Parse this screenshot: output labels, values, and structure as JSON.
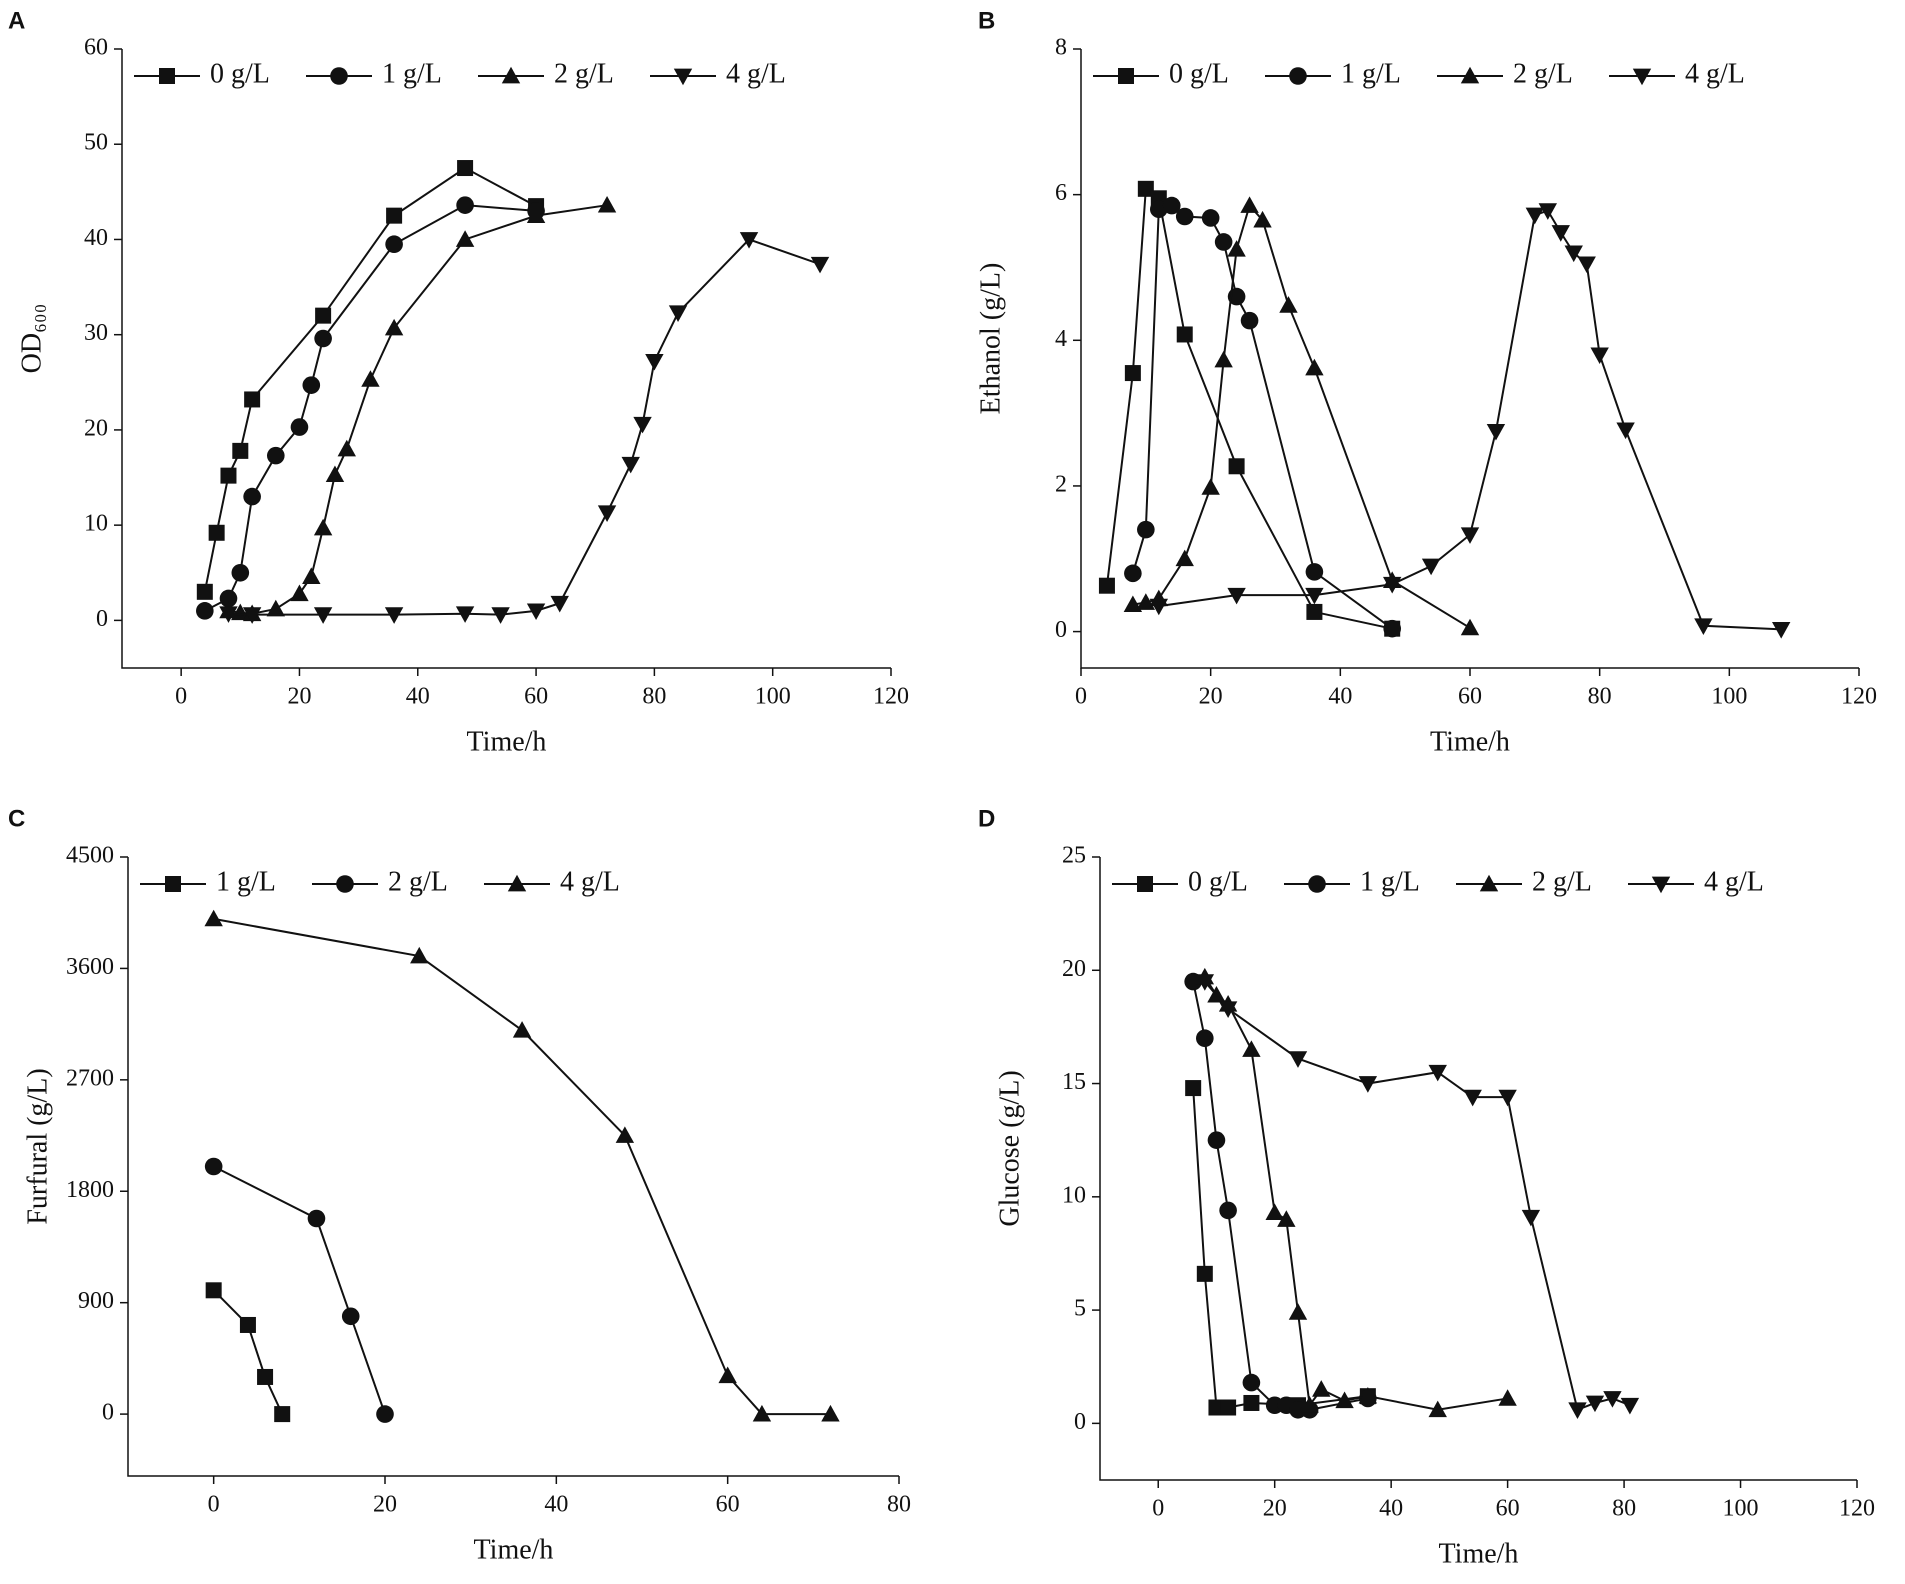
{
  "chart_data": [
    {
      "type": "line",
      "panel": "A",
      "xlabel": "Time/h",
      "ylabel": "OD₆₀₀",
      "xlim": [
        -10,
        120
      ],
      "ylim": [
        -5,
        60
      ],
      "xticks": [
        0,
        20,
        40,
        60,
        80,
        100,
        120
      ],
      "yticks": [
        0,
        10,
        20,
        30,
        40,
        50,
        60
      ],
      "series": [
        {
          "name": "0 g/L",
          "color": "#111111",
          "marker": "square",
          "x": [
            4,
            6,
            8,
            10,
            12,
            24,
            36,
            48,
            60
          ],
          "values": [
            3,
            9.2,
            15.2,
            17.8,
            23.2,
            32,
            42.5,
            47.5,
            43.5
          ]
        },
        {
          "name": "1 g/L",
          "color": "#111111",
          "marker": "circle",
          "x": [
            4,
            8,
            10,
            12,
            16,
            20,
            22,
            24,
            36,
            48,
            60
          ],
          "values": [
            1,
            2.3,
            5,
            13,
            17.3,
            20.3,
            24.7,
            29.6,
            39.5,
            43.6,
            43
          ]
        },
        {
          "name": "2 g/L",
          "color": "#111111",
          "marker": "triangle",
          "x": [
            8,
            10,
            12,
            16,
            20,
            22,
            24,
            26,
            28,
            32,
            36,
            48,
            60,
            72
          ],
          "values": [
            1,
            0.8,
            0.7,
            1.2,
            2.8,
            4.6,
            9.7,
            15.3,
            18,
            25.3,
            30.7,
            40,
            42.5,
            43.6
          ]
        },
        {
          "name": "4 g/L",
          "color": "#111111",
          "marker": "triangle-down",
          "x": [
            8,
            12,
            24,
            36,
            48,
            54,
            60,
            64,
            72,
            76,
            78,
            80,
            84,
            96,
            108
          ],
          "values": [
            0.7,
            0.6,
            0.6,
            0.6,
            0.7,
            0.6,
            1,
            1.8,
            11.3,
            16.4,
            20.6,
            27.2,
            32.3,
            40,
            37.4
          ]
        }
      ]
    },
    {
      "type": "line",
      "panel": "B",
      "xlabel": "Time/h",
      "ylabel": "Ethanol (g/L)",
      "xlim": [
        0,
        120
      ],
      "ylim": [
        -0.5,
        8
      ],
      "xticks": [
        0,
        20,
        40,
        60,
        80,
        100,
        120
      ],
      "yticks": [
        0,
        2,
        4,
        6,
        8
      ],
      "series": [
        {
          "name": "0 g/L",
          "color": "#111111",
          "marker": "square",
          "x": [
            4,
            8,
            10,
            12,
            16,
            24,
            36,
            48
          ],
          "values": [
            0.63,
            3.55,
            6.08,
            5.95,
            4.08,
            2.27,
            0.27,
            0.04
          ]
        },
        {
          "name": "1 g/L",
          "color": "#111111",
          "marker": "circle",
          "x": [
            8,
            10,
            12,
            14,
            16,
            20,
            22,
            24,
            26,
            36,
            48
          ],
          "values": [
            0.8,
            1.4,
            5.8,
            5.85,
            5.7,
            5.68,
            5.35,
            4.6,
            4.27,
            0.82,
            0.04
          ]
        },
        {
          "name": "2 g/L",
          "color": "#111111",
          "marker": "triangle",
          "x": [
            8,
            10,
            12,
            16,
            20,
            22,
            24,
            26,
            28,
            32,
            36,
            48,
            60
          ],
          "values": [
            0.37,
            0.4,
            0.45,
            1,
            1.98,
            3.73,
            5.25,
            5.85,
            5.65,
            4.48,
            3.62,
            0.7,
            0.05
          ]
        },
        {
          "name": "4 g/L",
          "color": "#111111",
          "marker": "triangle-down",
          "x": [
            12,
            24,
            36,
            48,
            54,
            60,
            64,
            70,
            72,
            74,
            76,
            78,
            80,
            84,
            96,
            108
          ],
          "values": [
            0.35,
            0.5,
            0.5,
            0.65,
            0.9,
            1.33,
            2.75,
            5.72,
            5.78,
            5.48,
            5.2,
            5.05,
            3.8,
            2.77,
            0.08,
            0.03
          ]
        }
      ]
    },
    {
      "type": "line",
      "panel": "C",
      "xlabel": "Time/h",
      "ylabel": "Furfural (g/L)",
      "xlim": [
        -10,
        80
      ],
      "ylim": [
        -500,
        4500
      ],
      "xticks": [
        0,
        20,
        40,
        60,
        80
      ],
      "yticks": [
        0,
        900,
        1800,
        2700,
        3600,
        4500
      ],
      "series": [
        {
          "name": "1 g/L",
          "color": "#111111",
          "marker": "square",
          "x": [
            0,
            4,
            6,
            8
          ],
          "values": [
            1000,
            720,
            300,
            0
          ]
        },
        {
          "name": "2 g/L",
          "color": "#111111",
          "marker": "circle",
          "x": [
            0,
            12,
            16,
            20
          ],
          "values": [
            2000,
            1580,
            790,
            0
          ]
        },
        {
          "name": "4 g/L",
          "color": "#111111",
          "marker": "triangle",
          "x": [
            0,
            24,
            36,
            48,
            60,
            64,
            72
          ],
          "values": [
            4000,
            3700,
            3100,
            2250,
            310,
            0,
            0
          ]
        }
      ]
    },
    {
      "type": "line",
      "panel": "D",
      "xlabel": "Time/h",
      "ylabel": "Glucose (g/L)",
      "xlim": [
        -10,
        120
      ],
      "ylim": [
        -2.5,
        25
      ],
      "xticks": [
        0,
        20,
        40,
        60,
        80,
        100,
        120
      ],
      "yticks": [
        0,
        5,
        10,
        15,
        20,
        25
      ],
      "series": [
        {
          "name": "0 g/L",
          "color": "#111111",
          "marker": "square",
          "x": [
            6,
            8,
            10,
            12,
            16,
            24,
            36
          ],
          "values": [
            14.8,
            6.6,
            0.7,
            0.7,
            0.9,
            0.8,
            1.2
          ]
        },
        {
          "name": "1 g/L",
          "color": "#111111",
          "marker": "circle",
          "x": [
            6,
            8,
            10,
            12,
            16,
            20,
            22,
            24,
            26,
            36
          ],
          "values": [
            19.5,
            17,
            12.5,
            9.4,
            1.8,
            0.8,
            0.8,
            0.6,
            0.6,
            1.1
          ]
        },
        {
          "name": "2 g/L",
          "color": "#111111",
          "marker": "triangle",
          "x": [
            8,
            10,
            12,
            16,
            20,
            22,
            24,
            26,
            28,
            32,
            36,
            48,
            60
          ],
          "values": [
            19.7,
            18.9,
            18.5,
            16.5,
            9.3,
            9,
            4.9,
            0.8,
            1.5,
            1,
            1.2,
            0.6,
            1.1
          ]
        },
        {
          "name": "4 g/L",
          "color": "#111111",
          "marker": "triangle-down",
          "x": [
            8,
            12,
            24,
            36,
            48,
            54,
            60,
            64,
            72,
            75,
            78,
            81
          ],
          "values": [
            19.5,
            18.3,
            16.1,
            15,
            15.5,
            14.4,
            14.4,
            9.1,
            0.6,
            0.9,
            1.1,
            0.8
          ]
        }
      ]
    }
  ]
}
